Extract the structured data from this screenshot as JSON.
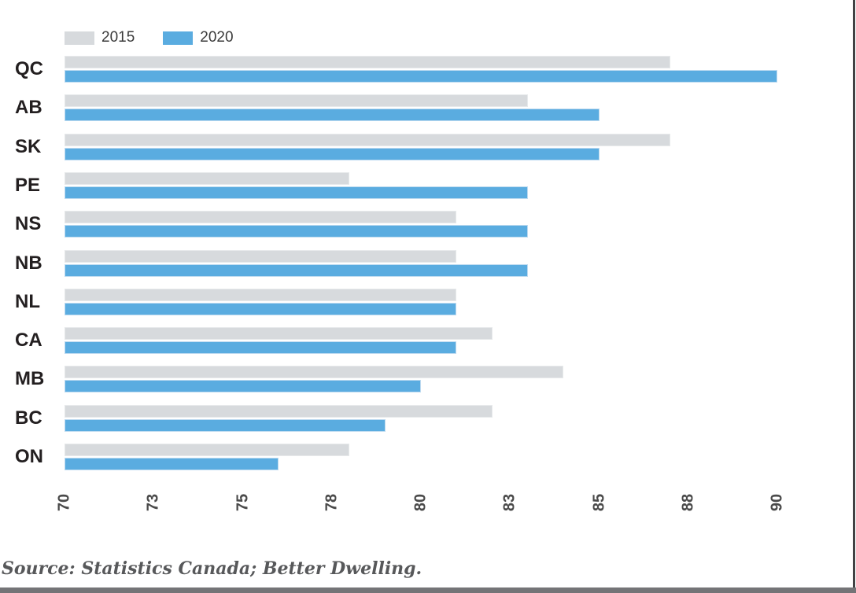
{
  "legend": {
    "items": [
      {
        "label": "2015",
        "color": "#d7dadd"
      },
      {
        "label": "2020",
        "color": "#5aace0"
      }
    ]
  },
  "chart_data": {
    "type": "bar",
    "orientation": "horizontal",
    "categories": [
      "QC",
      "AB",
      "SK",
      "PE",
      "NS",
      "NB",
      "NL",
      "CA",
      "MB",
      "BC",
      "ON"
    ],
    "series": [
      {
        "name": "2015",
        "color": "#d7dadd",
        "border_color": "#e7e9eb",
        "values": [
          87,
          83,
          87,
          78,
          81,
          81,
          81,
          82,
          84,
          82,
          78
        ]
      },
      {
        "name": "2020",
        "color": "#5aace0",
        "border_color": "#bddaf0",
        "values": [
          90,
          85,
          85,
          83,
          83,
          83,
          81,
          81,
          80,
          79,
          76
        ]
      }
    ],
    "title": "",
    "xlabel": "",
    "ylabel": "",
    "xlim": [
      70,
      90
    ],
    "x_tick_positions": [
      70,
      72.5,
      75,
      77.5,
      80,
      82.5,
      85,
      87.5,
      90
    ],
    "x_tick_labels": [
      "70",
      "73",
      "75",
      "78",
      "80",
      "83",
      "85",
      "88",
      "90"
    ],
    "grid": false,
    "legend_position": "top-left",
    "tick_label_rotation_deg": -90
  },
  "source": "Source: Statistics Canada; Better Dwelling.",
  "frame": {
    "right_border_color": "#424244",
    "bottom_bar_color": "#747477"
  }
}
